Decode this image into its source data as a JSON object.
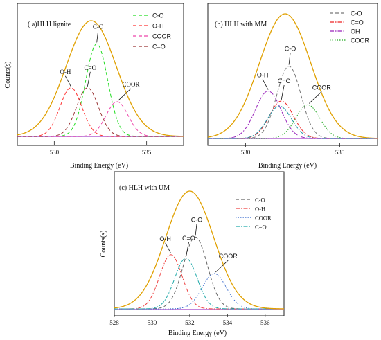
{
  "chart_data": [
    {
      "type": "line",
      "title": "( a)HLH   lignite",
      "xlabel": "Binding Energy (eV)",
      "ylabel": "Counts(s)",
      "xlim": [
        528,
        537
      ],
      "xticks": [
        530,
        535
      ],
      "legend_position": "top-right",
      "series": [
        {
          "name": "C-O",
          "center": 532.3,
          "height": 0.8,
          "fwhm": 1.4,
          "color": "#22dd22",
          "dash": "dash"
        },
        {
          "name": "O-H",
          "center": 530.9,
          "height": 0.42,
          "fwhm": 1.4,
          "color": "#ff3333",
          "dash": "dash"
        },
        {
          "name": "COOR",
          "center": 533.4,
          "height": 0.3,
          "fwhm": 1.4,
          "color": "#ee44aa",
          "dash": "dash"
        },
        {
          "name": "C=O",
          "center": 531.8,
          "height": 0.42,
          "fwhm": 1.4,
          "color": "#993333",
          "dash": "dash"
        }
      ],
      "envelope": {
        "center": 532.0,
        "height": 1.0,
        "fwhm": 3.2,
        "color": "#e0a000"
      },
      "annotations": [
        {
          "text": "C-O",
          "x": 532.3
        },
        {
          "text": "O-H",
          "x": 530.9
        },
        {
          "text": "C=O",
          "x": 531.8
        },
        {
          "text": "COOR",
          "x": 533.4
        }
      ]
    },
    {
      "type": "line",
      "title": "(b)    HLH with  MM",
      "xlabel": "Binding Energy (eV)",
      "ylabel": "",
      "xlim": [
        528,
        537
      ],
      "xticks": [
        530,
        535
      ],
      "legend_position": "top-right",
      "series": [
        {
          "name": "C-O",
          "center": 532.3,
          "height": 0.58,
          "fwhm": 1.5,
          "color": "#777777",
          "dash": "dash"
        },
        {
          "name": "C=O",
          "center": 531.9,
          "height": 0.3,
          "fwhm": 1.5,
          "color": "#ee2222",
          "dash": "dashdot"
        },
        {
          "name": "OH",
          "center": 531.2,
          "height": 0.38,
          "fwhm": 1.6,
          "color": "#9922bb",
          "dash": "dashdot"
        },
        {
          "name": "COOR",
          "center": 533.3,
          "height": 0.27,
          "fwhm": 1.5,
          "color": "#22aa22",
          "dash": "dot"
        }
      ],
      "extra_series": [
        {
          "center": 531.8,
          "height": 0.26,
          "fwhm": 1.5,
          "color": "#2299aa",
          "dash": "dashdot"
        }
      ],
      "envelope": {
        "center": 532.1,
        "height": 1.0,
        "fwhm": 3.2,
        "color": "#e0a000"
      },
      "annotations": [
        {
          "text": "C-O",
          "x": 532.3
        },
        {
          "text": "O-H",
          "x": 531.2
        },
        {
          "text": "C=O",
          "x": 531.9
        },
        {
          "text": "COOR",
          "x": 533.3
        }
      ]
    },
    {
      "type": "line",
      "title": "(c)    HLH  with UM",
      "xlabel": "Binding Energy (eV)",
      "ylabel": "Counts(s)",
      "xlim": [
        528,
        537
      ],
      "xticks": [
        528,
        530,
        532,
        534,
        536
      ],
      "legend_position": "top-right",
      "series": [
        {
          "name": "C-O",
          "center": 532.3,
          "height": 0.61,
          "fwhm": 1.5,
          "color": "#666666",
          "dash": "dash"
        },
        {
          "name": "O-H",
          "center": 531.0,
          "height": 0.46,
          "fwhm": 1.4,
          "color": "#ee4444",
          "dash": "dashdot"
        },
        {
          "name": "COOR",
          "center": 533.3,
          "height": 0.3,
          "fwhm": 1.5,
          "color": "#3366cc",
          "dash": "dot"
        },
        {
          "name": "C=O",
          "center": 531.8,
          "height": 0.43,
          "fwhm": 1.4,
          "color": "#22aaaa",
          "dash": "dashdot"
        }
      ],
      "envelope": {
        "center": 532.0,
        "height": 1.0,
        "fwhm": 3.0,
        "color": "#e0a000"
      },
      "annotations": [
        {
          "text": "C-O",
          "x": 532.3
        },
        {
          "text": "O-H",
          "x": 531.0
        },
        {
          "text": "C=O",
          "x": 531.8
        },
        {
          "text": "COOR",
          "x": 533.3
        }
      ]
    }
  ]
}
